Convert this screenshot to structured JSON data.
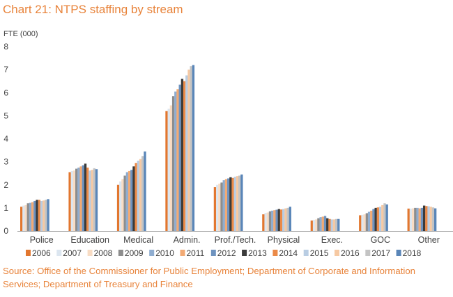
{
  "title": "Chart 21: NTPS staffing by stream",
  "source": "Source: Office of the Commissioner for Public Employment; Department of Corporate and Information Services; Department of Treasury and Finance",
  "chart_data": {
    "type": "bar",
    "ylabel": "FTE (000)",
    "xlabel": "",
    "ylim": [
      0,
      8
    ],
    "yticks": [
      "0",
      "1",
      "2",
      "3",
      "4",
      "5",
      "6",
      "7",
      "8"
    ],
    "grid": false,
    "legend_position": "bottom",
    "categories": [
      "Police",
      "Education",
      "Medical",
      "Admin.",
      "Prof./Tech.",
      "Physical",
      "Exec.",
      "GOC",
      "Other"
    ],
    "series": [
      {
        "name": "2006",
        "color": "#e2772f",
        "values": [
          1.05,
          2.55,
          2.0,
          5.2,
          1.9,
          0.72,
          0.45,
          0.68,
          0.97
        ]
      },
      {
        "name": "2007",
        "color": "#dce6f0",
        "values": [
          1.1,
          2.6,
          2.15,
          5.3,
          2.0,
          0.78,
          0.48,
          0.7,
          0.97
        ]
      },
      {
        "name": "2008",
        "color": "#f8dcc4",
        "values": [
          1.12,
          2.62,
          2.25,
          5.45,
          2.05,
          0.8,
          0.5,
          0.72,
          0.98
        ]
      },
      {
        "name": "2009",
        "color": "#8d8d8d",
        "values": [
          1.2,
          2.7,
          2.4,
          5.85,
          2.1,
          0.85,
          0.55,
          0.77,
          1.0
        ]
      },
      {
        "name": "2010",
        "color": "#8fadd0",
        "values": [
          1.22,
          2.75,
          2.55,
          6.05,
          2.2,
          0.88,
          0.6,
          0.83,
          1.0
        ]
      },
      {
        "name": "2011",
        "color": "#f2aa74",
        "values": [
          1.25,
          2.8,
          2.6,
          6.15,
          2.25,
          0.9,
          0.62,
          0.88,
          0.98
        ]
      },
      {
        "name": "2012",
        "color": "#6e93bf",
        "values": [
          1.3,
          2.85,
          2.65,
          6.35,
          2.28,
          0.92,
          0.65,
          0.95,
          1.0
        ]
      },
      {
        "name": "2013",
        "color": "#3a3a3a",
        "values": [
          1.35,
          2.92,
          2.8,
          6.6,
          2.33,
          0.95,
          0.55,
          1.0,
          1.1
        ]
      },
      {
        "name": "2014",
        "color": "#eb8a48",
        "values": [
          1.35,
          2.75,
          2.95,
          6.5,
          2.3,
          0.93,
          0.52,
          1.02,
          1.08
        ]
      },
      {
        "name": "2015",
        "color": "#b9cde3",
        "values": [
          1.3,
          2.62,
          3.05,
          6.75,
          2.35,
          0.95,
          0.5,
          1.05,
          1.07
        ]
      },
      {
        "name": "2016",
        "color": "#f6c9a3",
        "values": [
          1.32,
          2.65,
          3.12,
          7.0,
          2.38,
          0.98,
          0.5,
          1.12,
          1.05
        ]
      },
      {
        "name": "2017",
        "color": "#c4c4c4",
        "values": [
          1.35,
          2.72,
          3.25,
          7.15,
          2.4,
          1.0,
          0.52,
          1.2,
          1.02
        ]
      },
      {
        "name": "2018",
        "color": "#5a86b8",
        "values": [
          1.38,
          2.68,
          3.45,
          7.2,
          2.45,
          1.05,
          0.52,
          1.15,
          0.98
        ]
      }
    ]
  }
}
